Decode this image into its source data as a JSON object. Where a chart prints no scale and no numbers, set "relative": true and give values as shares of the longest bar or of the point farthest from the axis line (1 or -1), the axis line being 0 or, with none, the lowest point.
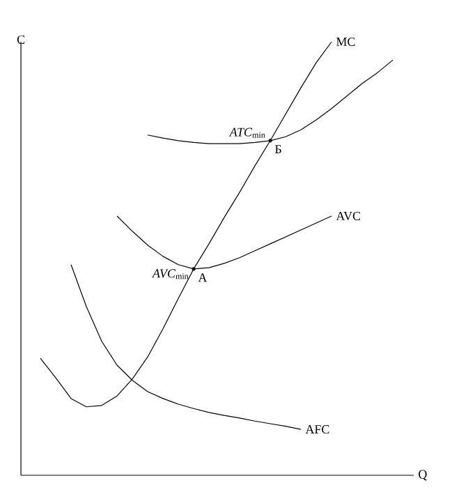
{
  "chart_data": {
    "type": "line",
    "relative": true,
    "xlabel": "Q",
    "ylabel": "C",
    "line_style": "solid",
    "marker": "none",
    "categories": [
      null,
      null,
      null,
      null,
      null,
      null,
      null,
      null,
      null,
      null,
      null,
      null,
      null,
      null,
      null,
      null,
      null,
      null,
      null,
      null,
      null,
      null,
      null,
      null,
      null
    ],
    "series": [
      {
        "name": "MC",
        "color": "#000000",
        "values": [
          null,
          0.27,
          0.225,
          0.177,
          0.158,
          0.161,
          0.183,
          0.222,
          0.273,
          0.338,
          0.408,
          0.476,
          0.534,
          0.595,
          0.653,
          0.714,
          0.772,
          0.833,
          0.894,
          0.952,
          1.0,
          null,
          null,
          null,
          null
        ]
      },
      {
        "name": "AVC",
        "color": "#000000",
        "values": [
          null,
          null,
          null,
          null,
          null,
          null,
          0.598,
          0.563,
          0.531,
          0.505,
          0.486,
          0.476,
          0.479,
          0.489,
          0.502,
          0.518,
          0.534,
          0.55,
          0.566,
          0.582,
          0.598,
          null,
          null,
          null,
          null
        ]
      },
      {
        "name": "AFC",
        "color": "#000000",
        "values": [
          null,
          null,
          null,
          0.486,
          0.389,
          0.309,
          0.254,
          0.219,
          0.193,
          0.177,
          0.164,
          0.154,
          0.145,
          0.138,
          0.132,
          0.125,
          0.119,
          0.113,
          0.106,
          null,
          null,
          null,
          null,
          null,
          null
        ]
      },
      {
        "color": "#000000",
        "values": [
          null,
          null,
          null,
          null,
          null,
          null,
          null,
          null,
          0.785,
          0.778,
          0.772,
          0.768,
          0.765,
          0.765,
          0.765,
          0.768,
          0.772,
          0.781,
          0.797,
          0.82,
          0.846,
          0.875,
          0.904,
          0.929,
          0.958
        ]
      }
    ],
    "annotations": [
      "*ATC*$_{min}$",
      "Б",
      "*AVC*$_{min}$",
      "A"
    ]
  }
}
